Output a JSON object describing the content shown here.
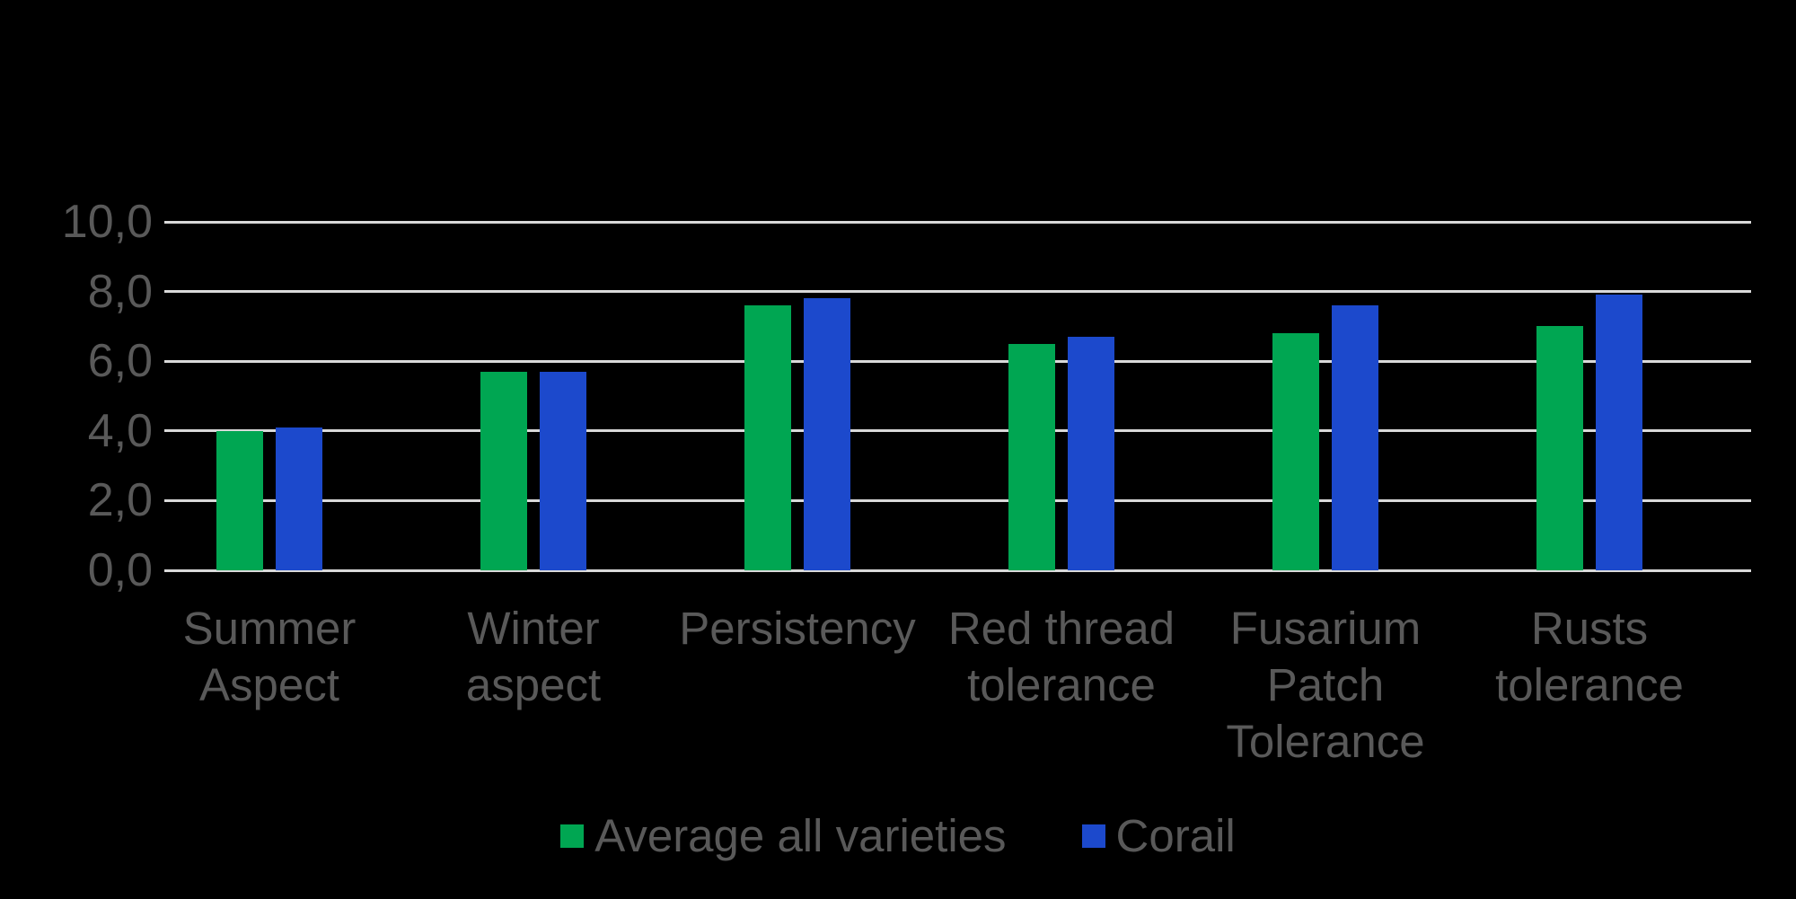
{
  "chart_data": {
    "type": "bar",
    "title": "",
    "categories": [
      "Summer Aspect",
      "Winter aspect",
      "Persistency",
      "Red thread tolerance",
      "Fusarium Patch Tolerance",
      "Rusts tolerance"
    ],
    "category_label_lines": [
      [
        "Summer",
        "Aspect"
      ],
      [
        "Winter",
        "aspect"
      ],
      [
        "Persistency"
      ],
      [
        "Red thread",
        "tolerance"
      ],
      [
        "Fusarium",
        "Patch",
        "Tolerance"
      ],
      [
        "Rusts",
        "tolerance"
      ]
    ],
    "series": [
      {
        "name": "Average all varieties",
        "color": "#00A652",
        "values": [
          4.0,
          5.7,
          7.6,
          6.5,
          6.8,
          7.0
        ]
      },
      {
        "name": "Corail",
        "color": "#1C49CC",
        "values": [
          4.1,
          5.7,
          7.8,
          6.7,
          7.6,
          7.9
        ]
      }
    ],
    "xlabel": "",
    "ylabel": "",
    "ylim": [
      0,
      10
    ],
    "ytick_step": 2,
    "ytick_labels": [
      "0,0",
      "2,0",
      "4,0",
      "6,0",
      "8,0",
      "10,0"
    ],
    "grid": true,
    "legend_position": "bottom"
  },
  "style": {
    "background_color": "#000000",
    "gridline_color": "#D9D9D9",
    "text_color": "#595959"
  }
}
